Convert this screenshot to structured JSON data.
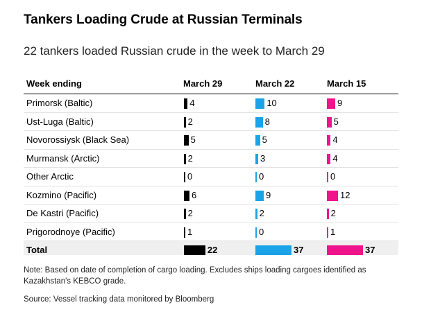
{
  "title": "Tankers Loading Crude at Russian Terminals",
  "subtitle": "22 tankers loaded Russian crude in the week to March 29",
  "note": "Note: Based on date of completion of cargo loading. Excludes ships loading cargoes identified as Kazakhstan's KEBCO grade.",
  "source": "Source: Vessel tracking data monitored by Bloomberg",
  "chart_data": {
    "type": "table",
    "row_header": "Week ending",
    "columns": [
      {
        "label": "March 29",
        "color": "#000000"
      },
      {
        "label": "March 22",
        "color": "#1aa3e8"
      },
      {
        "label": "March 15",
        "color": "#f0148c"
      }
    ],
    "rows": [
      {
        "terminal": "Primorsk (Baltic)",
        "values": [
          4,
          10,
          9
        ]
      },
      {
        "terminal": "Ust-Luga (Baltic)",
        "values": [
          2,
          8,
          5
        ]
      },
      {
        "terminal": "Novorossiysk (Black Sea)",
        "values": [
          5,
          5,
          4
        ]
      },
      {
        "terminal": "Murmansk (Arctic)",
        "values": [
          2,
          3,
          4
        ]
      },
      {
        "terminal": "Other Arctic",
        "values": [
          0,
          0,
          0
        ]
      },
      {
        "terminal": "Kozmino (Pacific)",
        "values": [
          6,
          9,
          12
        ]
      },
      {
        "terminal": "De Kastri (Pacific)",
        "values": [
          2,
          2,
          2
        ]
      },
      {
        "terminal": "Prigorodnoye (Pacific)",
        "values": [
          1,
          0,
          1
        ]
      },
      {
        "terminal": "Total",
        "values": [
          22,
          37,
          37
        ]
      }
    ]
  }
}
